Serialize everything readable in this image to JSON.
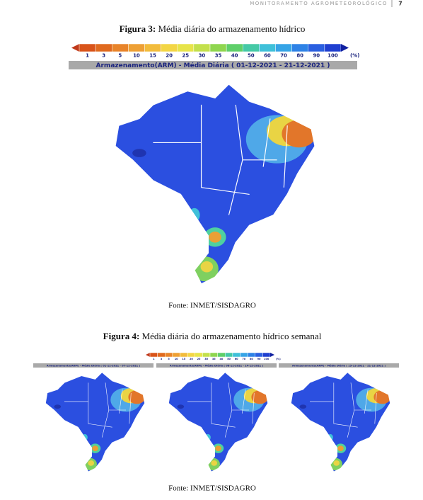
{
  "header": {
    "title": "MONITORAMENTO AGROMETEOROLÓGICO",
    "page": "7"
  },
  "figure3": {
    "label": "Figura 3:",
    "caption": "Média diária do armazenamento hídrico",
    "legend": {
      "ticks": [
        1,
        3,
        5,
        10,
        15,
        20,
        25,
        30,
        35,
        40,
        50,
        60,
        70,
        80,
        90,
        100
      ],
      "unit": "(%)"
    },
    "map_title": "Armazenamento(ARM) - Média Diária ( 01-12-2021 - 21-12-2021 )",
    "source": "Fonte: INMET/SISDAGRO"
  },
  "figure4": {
    "label": "Figura 4:",
    "caption": "Média diária do armazenamento hídrico semanal",
    "legend": {
      "ticks": [
        1,
        3,
        5,
        10,
        15,
        20,
        25,
        30,
        35,
        40,
        50,
        60,
        70,
        80,
        90,
        100
      ],
      "unit": "(%)"
    },
    "map_titles": [
      "Armazenamento(ARM) - Média Diária ( 01-12-2021 - 07-12-2021 )",
      "Armazenamento(ARM) - Média Diária ( 08-12-2021 - 14-12-2021 )",
      "Armazenamento(ARM) - Média Diária ( 15-12-2021 - 21-12-2021 )"
    ],
    "source": "Fonte: INMET/SISDAGRO"
  }
}
